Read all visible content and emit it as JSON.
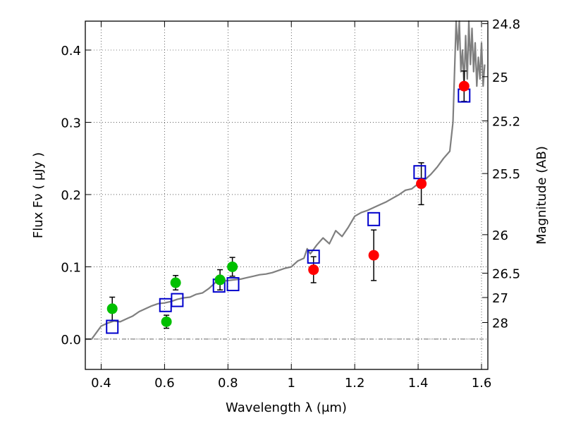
{
  "chart_data": {
    "type": "scatter",
    "xlabel": "Wavelength  λ (μm)",
    "ylabel": "Flux  Fν ( μJy )",
    "ylabel_right": "Magnitude (AB)",
    "xlim": [
      0.35,
      1.62
    ],
    "ylim": [
      -0.042,
      0.44
    ],
    "grid": true,
    "x_ticks": [
      0.4,
      0.6,
      0.8,
      1.0,
      1.2,
      1.4,
      1.6
    ],
    "x_tick_labels": [
      "0.4",
      "0.6",
      "0.8",
      "1",
      "1.2",
      "1.4",
      "1.6"
    ],
    "y_ticks": [
      0.0,
      0.1,
      0.2,
      0.3,
      0.4
    ],
    "y_tick_labels": [
      "0.0",
      "0.1",
      "0.2",
      "0.3",
      "0.4"
    ],
    "right_ticks": [
      {
        "label": "24.8",
        "flux": 0.4365
      },
      {
        "label": "25",
        "flux": 0.3631
      },
      {
        "label": "25.2",
        "flux": 0.302
      },
      {
        "label": "25.5",
        "flux": 0.2291
      },
      {
        "label": "26",
        "flux": 0.1445
      },
      {
        "label": "26.5",
        "flux": 0.0912
      },
      {
        "label": "27",
        "flux": 0.0575
      },
      {
        "label": "28",
        "flux": 0.0229
      }
    ],
    "colors": {
      "model_line": "#7f7f7f",
      "optical": "#00c000",
      "nir": "#ff0000",
      "model_box": "#0000cc",
      "errorbar": "#000000"
    },
    "series": [
      {
        "name": "model-spectrum",
        "kind": "line",
        "x": [
          0.35,
          0.37,
          0.39,
          0.4,
          0.42,
          0.44,
          0.46,
          0.48,
          0.5,
          0.52,
          0.54,
          0.56,
          0.58,
          0.6,
          0.62,
          0.64,
          0.66,
          0.68,
          0.7,
          0.72,
          0.74,
          0.76,
          0.78,
          0.8,
          0.82,
          0.84,
          0.86,
          0.88,
          0.9,
          0.92,
          0.94,
          0.96,
          0.98,
          1.0,
          1.02,
          1.04,
          1.05,
          1.06,
          1.08,
          1.1,
          1.12,
          1.14,
          1.16,
          1.18,
          1.2,
          1.22,
          1.24,
          1.26,
          1.28,
          1.3,
          1.32,
          1.34,
          1.36,
          1.38,
          1.4,
          1.42,
          1.44,
          1.46,
          1.48,
          1.5,
          1.51,
          1.52,
          1.525,
          1.53,
          1.535,
          1.54,
          1.545,
          1.55,
          1.555,
          1.56,
          1.565,
          1.57,
          1.575,
          1.58,
          1.585,
          1.59,
          1.595,
          1.6,
          1.605,
          1.61
        ],
        "y": [
          0.0,
          0.0,
          0.012,
          0.018,
          0.022,
          0.025,
          0.024,
          0.028,
          0.032,
          0.038,
          0.042,
          0.046,
          0.049,
          0.05,
          0.052,
          0.055,
          0.057,
          0.058,
          0.062,
          0.064,
          0.07,
          0.078,
          0.08,
          0.081,
          0.082,
          0.083,
          0.085,
          0.087,
          0.089,
          0.09,
          0.092,
          0.095,
          0.098,
          0.1,
          0.108,
          0.112,
          0.125,
          0.118,
          0.13,
          0.14,
          0.132,
          0.15,
          0.142,
          0.155,
          0.17,
          0.175,
          0.178,
          0.182,
          0.186,
          0.19,
          0.195,
          0.2,
          0.206,
          0.208,
          0.215,
          0.22,
          0.228,
          0.238,
          0.25,
          0.26,
          0.3,
          0.44,
          0.4,
          0.44,
          0.37,
          0.4,
          0.35,
          0.42,
          0.36,
          0.44,
          0.38,
          0.43,
          0.37,
          0.41,
          0.35,
          0.39,
          0.36,
          0.41,
          0.35,
          0.38
        ]
      },
      {
        "name": "optical-photometry",
        "kind": "points",
        "x": [
          0.435,
          0.606,
          0.635,
          0.775,
          0.814
        ],
        "y": [
          0.042,
          0.024,
          0.078,
          0.082,
          0.1
        ],
        "err": [
          0.016,
          0.009,
          0.01,
          0.014,
          0.013
        ]
      },
      {
        "name": "nir-photometry",
        "kind": "points",
        "x": [
          1.07,
          1.26,
          1.41,
          1.545
        ],
        "y": [
          0.096,
          0.116,
          0.215,
          0.35
        ],
        "err": [
          0.018,
          0.035,
          0.029,
          0.021
        ]
      },
      {
        "name": "model-photometry",
        "kind": "boxes",
        "x": [
          0.435,
          0.603,
          0.64,
          0.772,
          0.816,
          1.07,
          1.26,
          1.405,
          1.545
        ],
        "y": [
          0.017,
          0.047,
          0.054,
          0.074,
          0.076,
          0.114,
          0.166,
          0.231,
          0.337
        ]
      }
    ]
  }
}
